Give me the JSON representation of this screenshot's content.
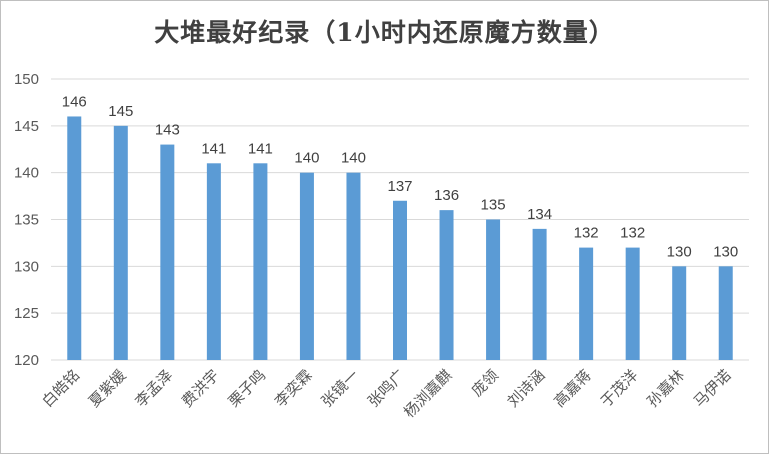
{
  "chart_data": {
    "type": "bar",
    "title": "大堆最好纪录（1小时内还原魔方数量）",
    "categories": [
      "白皓铭",
      "夏紫媛",
      "李孟泽",
      "费洪宇",
      "栗子鸣",
      "李奕霖",
      "张镜一",
      "张鸣广",
      "杨浏嘉麒",
      "庞领",
      "刘诗涵",
      "高嘉蒋",
      "于茂洋",
      "孙嘉林",
      "马伊诺"
    ],
    "values": [
      146,
      145,
      143,
      141,
      141,
      140,
      140,
      137,
      136,
      135,
      134,
      132,
      132,
      130,
      130
    ],
    "yticks": [
      120,
      125,
      130,
      135,
      140,
      145,
      150
    ],
    "ylim": [
      120,
      150
    ],
    "xlabel": "",
    "ylabel": "",
    "grid": true,
    "bar_color": "#5b9bd5"
  }
}
